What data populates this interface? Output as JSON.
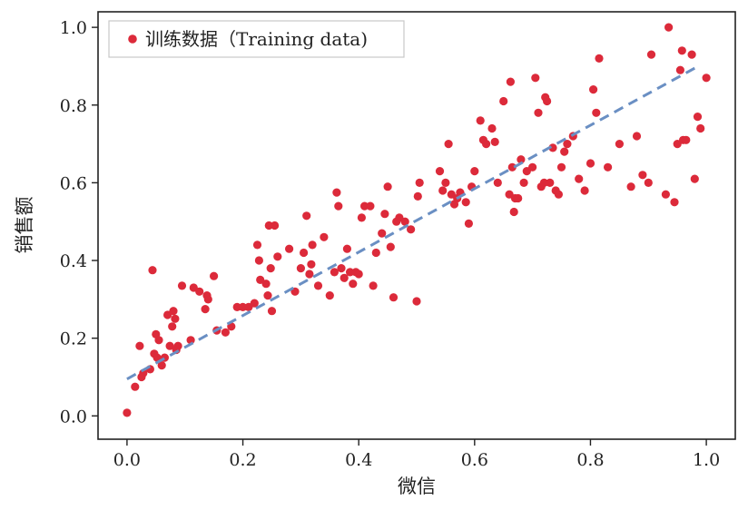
{
  "chart_data": {
    "type": "scatter",
    "xlabel": "微信",
    "ylabel": "销售额",
    "xlim": [
      -0.05,
      1.05
    ],
    "ylim": [
      -0.06,
      1.04
    ],
    "x_ticks": [
      "0.0",
      "0.2",
      "0.4",
      "0.6",
      "0.8",
      "1.0"
    ],
    "y_ticks": [
      "0.0",
      "0.2",
      "0.4",
      "0.6",
      "0.8",
      "1.0"
    ],
    "grid": false,
    "legend_position": "top-left",
    "colors": {
      "points": "#dc2a3a",
      "fit_line": "#6a8fc3",
      "frame": "#222222",
      "legend_border": "#c8c8c8"
    },
    "series": [
      {
        "name": "训练数据（Training data)",
        "kind": "points",
        "points": [
          [
            0.0,
            0.008
          ],
          [
            0.014,
            0.075
          ],
          [
            0.022,
            0.18
          ],
          [
            0.025,
            0.1
          ],
          [
            0.028,
            0.11
          ],
          [
            0.04,
            0.12
          ],
          [
            0.044,
            0.375
          ],
          [
            0.047,
            0.16
          ],
          [
            0.05,
            0.21
          ],
          [
            0.052,
            0.15
          ],
          [
            0.055,
            0.195
          ],
          [
            0.06,
            0.13
          ],
          [
            0.065,
            0.15
          ],
          [
            0.07,
            0.26
          ],
          [
            0.074,
            0.18
          ],
          [
            0.078,
            0.23
          ],
          [
            0.08,
            0.27
          ],
          [
            0.083,
            0.25
          ],
          [
            0.085,
            0.17
          ],
          [
            0.088,
            0.18
          ],
          [
            0.095,
            0.335
          ],
          [
            0.11,
            0.195
          ],
          [
            0.115,
            0.33
          ],
          [
            0.125,
            0.32
          ],
          [
            0.135,
            0.275
          ],
          [
            0.138,
            0.31
          ],
          [
            0.14,
            0.3
          ],
          [
            0.15,
            0.36
          ],
          [
            0.155,
            0.22
          ],
          [
            0.17,
            0.215
          ],
          [
            0.18,
            0.23
          ],
          [
            0.19,
            0.28
          ],
          [
            0.2,
            0.28
          ],
          [
            0.21,
            0.28
          ],
          [
            0.22,
            0.29
          ],
          [
            0.225,
            0.44
          ],
          [
            0.228,
            0.4
          ],
          [
            0.23,
            0.35
          ],
          [
            0.24,
            0.34
          ],
          [
            0.243,
            0.31
          ],
          [
            0.245,
            0.49
          ],
          [
            0.248,
            0.38
          ],
          [
            0.25,
            0.27
          ],
          [
            0.255,
            0.49
          ],
          [
            0.26,
            0.41
          ],
          [
            0.28,
            0.43
          ],
          [
            0.29,
            0.32
          ],
          [
            0.3,
            0.38
          ],
          [
            0.305,
            0.42
          ],
          [
            0.31,
            0.515
          ],
          [
            0.315,
            0.365
          ],
          [
            0.318,
            0.39
          ],
          [
            0.32,
            0.44
          ],
          [
            0.33,
            0.335
          ],
          [
            0.34,
            0.46
          ],
          [
            0.35,
            0.31
          ],
          [
            0.358,
            0.37
          ],
          [
            0.362,
            0.575
          ],
          [
            0.365,
            0.54
          ],
          [
            0.37,
            0.38
          ],
          [
            0.375,
            0.355
          ],
          [
            0.38,
            0.43
          ],
          [
            0.385,
            0.37
          ],
          [
            0.39,
            0.34
          ],
          [
            0.395,
            0.37
          ],
          [
            0.4,
            0.365
          ],
          [
            0.405,
            0.51
          ],
          [
            0.41,
            0.54
          ],
          [
            0.42,
            0.54
          ],
          [
            0.425,
            0.335
          ],
          [
            0.43,
            0.42
          ],
          [
            0.44,
            0.47
          ],
          [
            0.445,
            0.52
          ],
          [
            0.45,
            0.59
          ],
          [
            0.455,
            0.435
          ],
          [
            0.46,
            0.305
          ],
          [
            0.465,
            0.5
          ],
          [
            0.47,
            0.51
          ],
          [
            0.48,
            0.5
          ],
          [
            0.49,
            0.48
          ],
          [
            0.5,
            0.295
          ],
          [
            0.502,
            0.565
          ],
          [
            0.505,
            0.6
          ],
          [
            0.54,
            0.63
          ],
          [
            0.545,
            0.58
          ],
          [
            0.55,
            0.6
          ],
          [
            0.555,
            0.7
          ],
          [
            0.56,
            0.57
          ],
          [
            0.565,
            0.545
          ],
          [
            0.57,
            0.56
          ],
          [
            0.575,
            0.575
          ],
          [
            0.585,
            0.55
          ],
          [
            0.59,
            0.495
          ],
          [
            0.595,
            0.59
          ],
          [
            0.6,
            0.63
          ],
          [
            0.61,
            0.76
          ],
          [
            0.615,
            0.71
          ],
          [
            0.62,
            0.7
          ],
          [
            0.63,
            0.74
          ],
          [
            0.635,
            0.705
          ],
          [
            0.64,
            0.6
          ],
          [
            0.65,
            0.81
          ],
          [
            0.66,
            0.57
          ],
          [
            0.662,
            0.86
          ],
          [
            0.665,
            0.64
          ],
          [
            0.668,
            0.525
          ],
          [
            0.67,
            0.56
          ],
          [
            0.675,
            0.56
          ],
          [
            0.68,
            0.66
          ],
          [
            0.685,
            0.6
          ],
          [
            0.69,
            0.63
          ],
          [
            0.7,
            0.64
          ],
          [
            0.705,
            0.87
          ],
          [
            0.71,
            0.78
          ],
          [
            0.715,
            0.59
          ],
          [
            0.72,
            0.6
          ],
          [
            0.722,
            0.82
          ],
          [
            0.725,
            0.81
          ],
          [
            0.73,
            0.6
          ],
          [
            0.735,
            0.69
          ],
          [
            0.74,
            0.58
          ],
          [
            0.745,
            0.57
          ],
          [
            0.75,
            0.64
          ],
          [
            0.755,
            0.68
          ],
          [
            0.76,
            0.7
          ],
          [
            0.77,
            0.72
          ],
          [
            0.78,
            0.61
          ],
          [
            0.79,
            0.58
          ],
          [
            0.8,
            0.65
          ],
          [
            0.805,
            0.84
          ],
          [
            0.81,
            0.78
          ],
          [
            0.815,
            0.92
          ],
          [
            0.83,
            0.64
          ],
          [
            0.85,
            0.7
          ],
          [
            0.87,
            0.59
          ],
          [
            0.88,
            0.72
          ],
          [
            0.89,
            0.62
          ],
          [
            0.9,
            0.6
          ],
          [
            0.905,
            0.93
          ],
          [
            0.93,
            0.57
          ],
          [
            0.935,
            1.0
          ],
          [
            0.945,
            0.55
          ],
          [
            0.95,
            0.7
          ],
          [
            0.955,
            0.89
          ],
          [
            0.958,
            0.94
          ],
          [
            0.96,
            0.71
          ],
          [
            0.965,
            0.71
          ],
          [
            0.975,
            0.93
          ],
          [
            0.98,
            0.61
          ],
          [
            0.985,
            0.77
          ],
          [
            0.99,
            0.74
          ],
          [
            1.0,
            0.87
          ]
        ]
      },
      {
        "kind": "line",
        "style": "dashed",
        "points": [
          [
            0.0,
            0.095
          ],
          [
            0.98,
            0.895
          ]
        ]
      }
    ]
  }
}
